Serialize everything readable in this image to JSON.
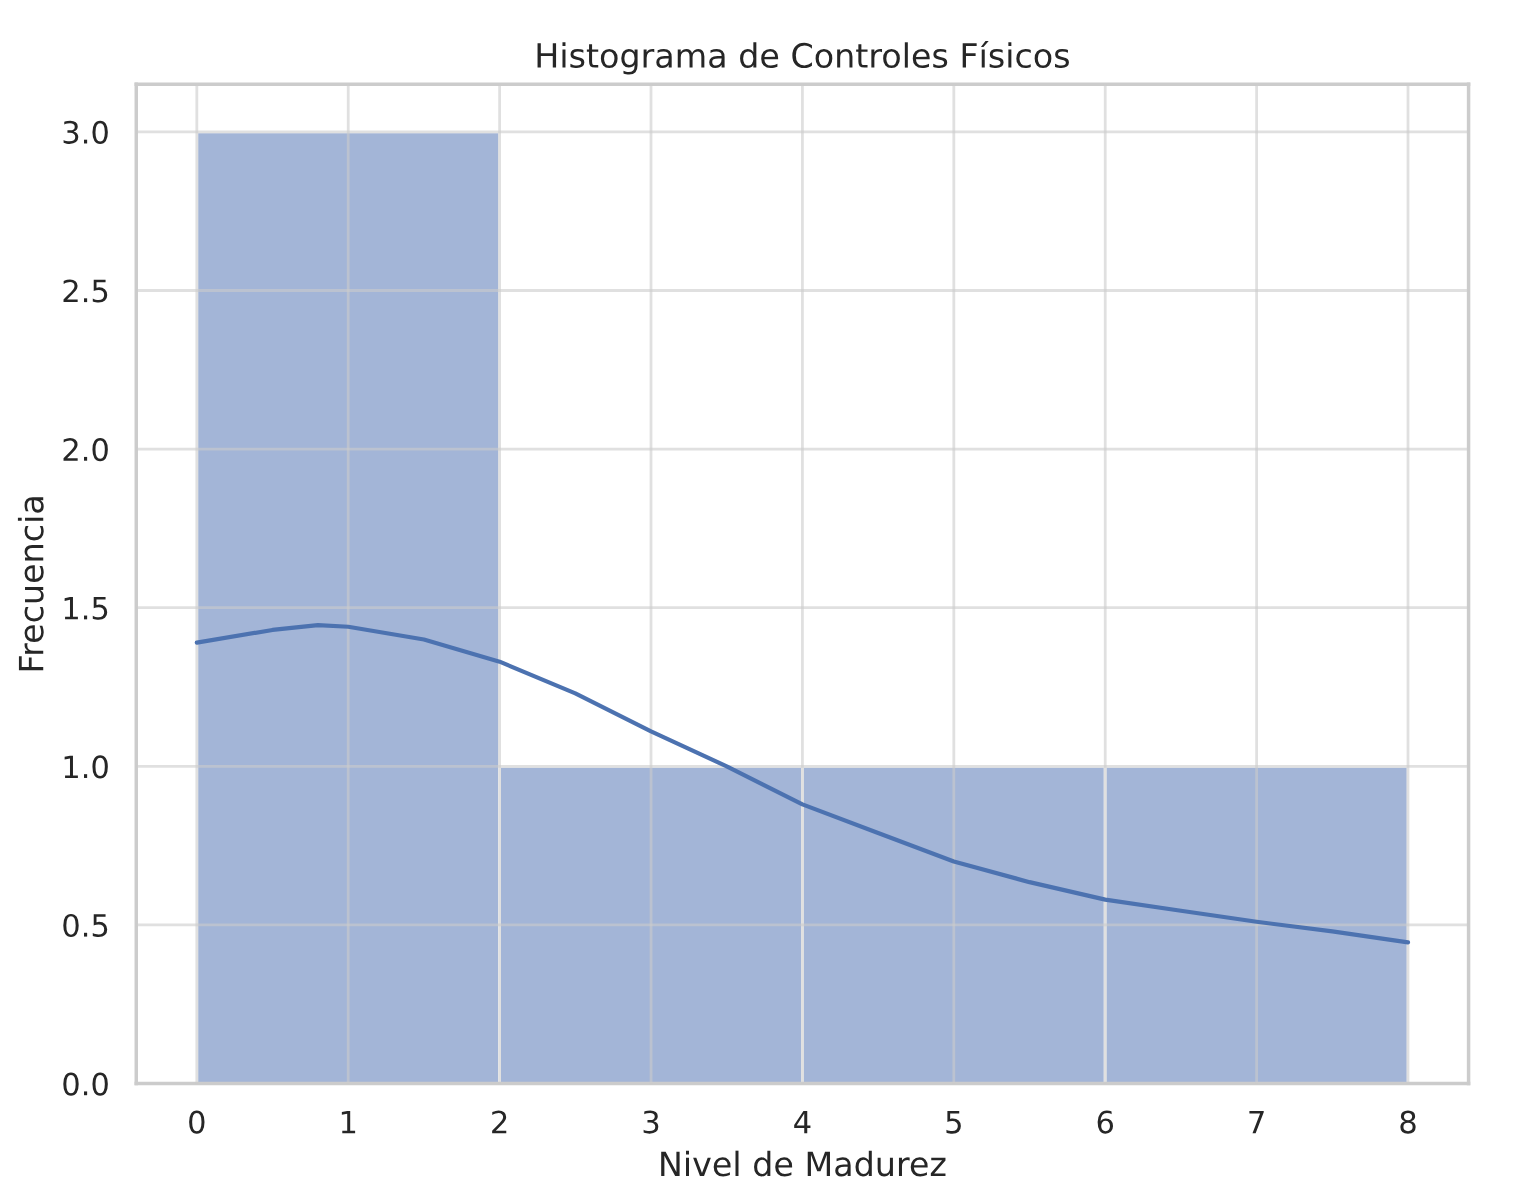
{
  "chart_data": {
    "type": "histogram",
    "title": "Histograma de Controles Físicos",
    "xlabel": "Nivel de Madurez",
    "ylabel": "Frecuencia",
    "series": [
      {
        "bins": [
          0,
          2,
          4,
          6,
          8
        ],
        "values": [
          3,
          1,
          1,
          1
        ],
        "color": "#a3b5d7"
      },
      {
        "type": "line",
        "x": [
          0,
          0.5,
          0.8,
          1,
          1.5,
          2,
          2.5,
          3,
          3.5,
          4,
          4.5,
          5,
          5.5,
          6,
          6.5,
          7,
          7.5,
          8
        ],
        "values": [
          1.39,
          1.43,
          1.445,
          1.44,
          1.4,
          1.33,
          1.23,
          1.11,
          1.0,
          0.88,
          0.79,
          0.7,
          0.635,
          0.58,
          0.545,
          0.51,
          0.48,
          0.445
        ],
        "color": "#4c72b0"
      }
    ],
    "xlim": [
      -0.4,
      8.4
    ],
    "xticks": [
      0,
      1,
      2,
      3,
      4,
      5,
      6,
      7,
      8
    ],
    "ylim": [
      0,
      3.15
    ],
    "yticks": [
      {
        "value": 0,
        "label": "0.0"
      },
      {
        "value": 0.5,
        "label": "0.5"
      },
      {
        "value": 1,
        "label": "1.0"
      },
      {
        "value": 1.5,
        "label": "1.5"
      },
      {
        "value": 2,
        "label": "2.0"
      },
      {
        "value": 2.5,
        "label": "2.5"
      },
      {
        "value": 3,
        "label": "3.0"
      }
    ],
    "grid": true
  }
}
